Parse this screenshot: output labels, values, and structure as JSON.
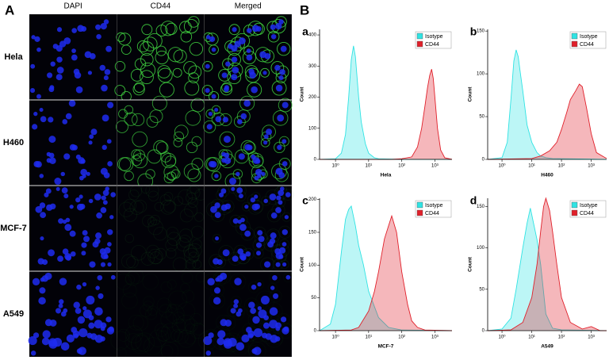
{
  "panel_a": {
    "label": "A",
    "columns": [
      "DAPI",
      "CD44",
      "Merged"
    ],
    "rows": [
      "Hela",
      "H460",
      "MCF-7",
      "A549"
    ]
  },
  "panel_b": {
    "label": "B"
  },
  "chart_data": [
    {
      "type": "area",
      "label": "a",
      "xlabel": "Hela",
      "ylabel": "Count",
      "xscale": "log",
      "xlim": [
        0.33,
        3300
      ],
      "xticks": [
        {
          "value": 1,
          "label": "10⁰"
        },
        {
          "value": 10,
          "label": "10¹"
        },
        {
          "value": 100,
          "label": "10²"
        },
        {
          "value": 1000,
          "label": "10³"
        }
      ],
      "ylim": [
        0,
        418
      ],
      "yticks": [
        0,
        100,
        200,
        300,
        400
      ],
      "legend": "top-right",
      "series": [
        {
          "name": "Isotype",
          "color": "#2fe3e3",
          "x": [
            0.33,
            1,
            1.5,
            2,
            2.5,
            3,
            3.5,
            4,
            5,
            6,
            8,
            10,
            15,
            20,
            50,
            100,
            3300
          ],
          "values": [
            0,
            2,
            20,
            80,
            200,
            320,
            365,
            330,
            200,
            120,
            50,
            20,
            5,
            2,
            1,
            0,
            0
          ]
        },
        {
          "name": "CD44",
          "color": "#e0202a",
          "x": [
            0.33,
            50,
            100,
            200,
            300,
            400,
            500,
            600,
            700,
            800,
            900,
            1000,
            1200,
            1500,
            2000,
            3300
          ],
          "values": [
            0,
            0,
            2,
            8,
            40,
            100,
            170,
            230,
            270,
            290,
            260,
            200,
            100,
            30,
            5,
            0
          ]
        }
      ]
    },
    {
      "type": "area",
      "label": "b",
      "xlabel": "H460",
      "ylabel": "Count",
      "xscale": "log",
      "xlim": [
        0.33,
        3300
      ],
      "xticks": [
        {
          "value": 1,
          "label": "10⁰"
        },
        {
          "value": 10,
          "label": "10¹"
        },
        {
          "value": 100,
          "label": "10²"
        },
        {
          "value": 1000,
          "label": "10³"
        }
      ],
      "ylim": [
        0,
        152
      ],
      "yticks": [
        0,
        50,
        100,
        150
      ],
      "legend": "top-right",
      "series": [
        {
          "name": "Isotype",
          "color": "#2fe3e3",
          "x": [
            0.33,
            1,
            1.5,
            2,
            2.5,
            3,
            3.5,
            4,
            5,
            7,
            10,
            15,
            20,
            30,
            50,
            3300
          ],
          "values": [
            0,
            2,
            20,
            70,
            115,
            128,
            120,
            105,
            80,
            40,
            20,
            8,
            4,
            2,
            1,
            0
          ]
        },
        {
          "name": "CD44",
          "color": "#e0202a",
          "x": [
            0.33,
            10,
            20,
            40,
            70,
            100,
            150,
            200,
            300,
            400,
            500,
            700,
            1000,
            1500,
            3300
          ],
          "values": [
            0,
            1,
            4,
            10,
            20,
            35,
            55,
            70,
            80,
            88,
            85,
            60,
            30,
            8,
            1
          ]
        }
      ]
    },
    {
      "type": "area",
      "label": "c",
      "xlabel": "MCF-7",
      "ylabel": "Count",
      "xscale": "log",
      "xlim": [
        0.33,
        3300
      ],
      "xticks": [
        {
          "value": 1,
          "label": "10⁰"
        },
        {
          "value": 10,
          "label": "10¹"
        },
        {
          "value": 100,
          "label": "10²"
        },
        {
          "value": 1000,
          "label": "10³"
        }
      ],
      "ylim": [
        0,
        202
      ],
      "yticks": [
        0,
        50,
        100,
        150,
        200
      ],
      "legend": "top-right",
      "series": [
        {
          "name": "Isotype",
          "color": "#2fe3e3",
          "x": [
            0.33,
            0.7,
            1,
            1.5,
            2,
            2.5,
            3,
            4,
            5,
            7,
            10,
            20,
            40,
            100,
            3300
          ],
          "values": [
            0,
            10,
            40,
            120,
            170,
            185,
            190,
            160,
            130,
            100,
            60,
            20,
            5,
            1,
            0
          ]
        },
        {
          "name": "CD44",
          "color": "#e0202a",
          "x": [
            0.33,
            3,
            5,
            10,
            15,
            20,
            30,
            40,
            50,
            70,
            100,
            150,
            200,
            300,
            500,
            3300
          ],
          "values": [
            0,
            1,
            5,
            30,
            60,
            90,
            140,
            160,
            175,
            150,
            90,
            40,
            15,
            5,
            1,
            0
          ]
        }
      ]
    },
    {
      "type": "area",
      "label": "d",
      "xlabel": "A549",
      "ylabel": "Count",
      "xscale": "log",
      "xlim": [
        0.33,
        3300
      ],
      "xticks": [
        {
          "value": 1,
          "label": "10⁰"
        },
        {
          "value": 10,
          "label": "10¹"
        },
        {
          "value": 100,
          "label": "10²"
        },
        {
          "value": 1000,
          "label": "10³"
        }
      ],
      "ylim": [
        0,
        160
      ],
      "yticks": [
        0,
        50,
        100,
        150
      ],
      "legend": "top-right",
      "series": [
        {
          "name": "Isotype",
          "color": "#2fe3e3",
          "x": [
            0.33,
            1,
            2,
            3,
            5,
            7,
            9,
            10,
            15,
            20,
            30,
            50,
            100,
            3300
          ],
          "values": [
            0,
            2,
            15,
            50,
            100,
            130,
            148,
            140,
            110,
            80,
            20,
            3,
            1,
            0
          ]
        },
        {
          "name": "CD44",
          "color": "#e0202a",
          "x": [
            0.33,
            2,
            5,
            10,
            15,
            20,
            25,
            30,
            40,
            50,
            70,
            100,
            200,
            500,
            1000,
            2000,
            3300
          ],
          "values": [
            0,
            1,
            10,
            40,
            80,
            120,
            150,
            160,
            145,
            120,
            80,
            40,
            10,
            2,
            5,
            0,
            0
          ]
        }
      ]
    }
  ]
}
